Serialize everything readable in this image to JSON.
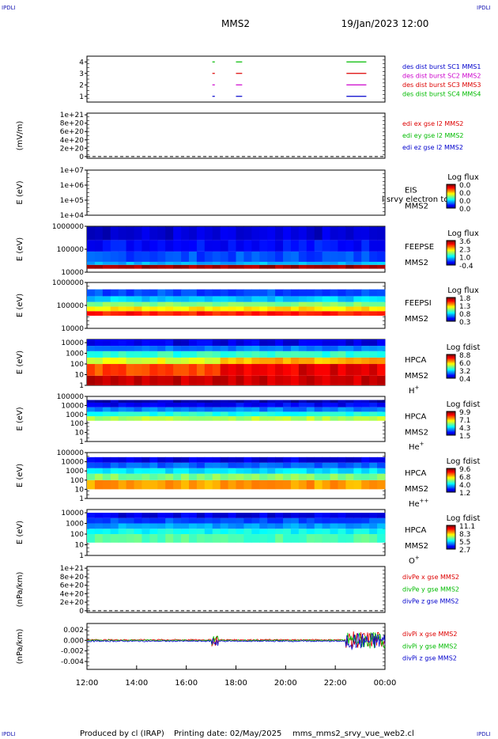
{
  "header": {
    "satellite": "MMS2",
    "datetime": "19/Jan/2023 12:00",
    "corner_label": "IPDLI"
  },
  "footer": {
    "produced_by": "Produced by cl (IRAP)",
    "printing_date": "Printing date: 02/May/2025",
    "script": "mms_mms2_srvy_vue_web2.cl"
  },
  "chart_data": [
    {
      "type": "line",
      "panel": "burst-availability",
      "ylabel": "",
      "y_ticks": [
        "1",
        "2",
        "3",
        "4"
      ],
      "ylim": [
        0.5,
        4.5
      ],
      "series": [
        {
          "name": "des dist burst SC1 MMS1",
          "color": "#0000cc",
          "level": 1,
          "intervals": [
            [
              17.05,
              17.15
            ],
            [
              18.0,
              18.25
            ],
            [
              22.45,
              23.25
            ]
          ]
        },
        {
          "name": "des dist burst SC2 MMS2",
          "color": "#cc00cc",
          "level": 2,
          "intervals": [
            [
              17.05,
              17.15
            ],
            [
              18.0,
              18.25
            ],
            [
              22.45,
              23.25
            ]
          ]
        },
        {
          "name": "des dist burst SC3 MMS3",
          "color": "#dd0000",
          "level": 3,
          "intervals": [
            [
              17.05,
              17.15
            ],
            [
              18.0,
              18.25
            ],
            [
              22.45,
              23.25
            ]
          ]
        },
        {
          "name": "des dist burst SC4 MMS4",
          "color": "#00bb00",
          "level": 4,
          "intervals": [
            [
              17.05,
              17.15
            ],
            [
              18.0,
              18.25
            ],
            [
              22.45,
              23.25
            ]
          ]
        }
      ]
    },
    {
      "type": "line",
      "panel": "edi-electric-field",
      "ylabel": "(mV/m)",
      "y_ticks": [
        "0",
        "2e+20",
        "4e+20",
        "6e+20",
        "8e+20",
        "1e+21"
      ],
      "y_tick_values": [
        0,
        2e+20,
        4e+20,
        6e+20,
        8e+20,
        1e+21
      ],
      "ylim": [
        -4e+19,
        1.04e+21
      ],
      "zero_line": true,
      "series": [
        {
          "name": "edi ex gse l2 MMS2",
          "color": "#dd0000"
        },
        {
          "name": "edi ey gse l2 MMS2",
          "color": "#00bb00"
        },
        {
          "name": "edi ez gse l2 MMS2",
          "color": "#0000cc"
        }
      ]
    },
    {
      "type": "heatmap",
      "panel": "eis",
      "ylabel": "E (eV)",
      "y_ticks": [
        "1e+04",
        "1e+05",
        "1e+06",
        "1e+07"
      ],
      "ylog": [
        4,
        7
      ],
      "labels": [
        "EIS",
        "MMS2"
      ],
      "overlay_text": "l srvy electron to",
      "colorbar": {
        "title": "Log flux",
        "ticks": [
          "0.0",
          "0.0",
          "0.0",
          "0.0"
        ]
      },
      "bands": []
    },
    {
      "type": "heatmap",
      "panel": "feeps-electrons",
      "ylabel": "E (eV)",
      "y_ticks": [
        "10000",
        "100000",
        "1000000"
      ],
      "ylog": [
        4,
        6
      ],
      "labels": [
        "FEEPSE",
        "MMS2"
      ],
      "colorbar": {
        "title": "Log flux",
        "ticks": [
          "3.6",
          "2.3",
          "1.0",
          "-0.4"
        ]
      },
      "bands": [
        {
          "lo": 4.15,
          "hi": 4.32,
          "v": 0.97
        },
        {
          "lo": 4.32,
          "hi": 4.45,
          "v": 0.3
        },
        {
          "lo": 4.45,
          "hi": 4.9,
          "v": 0.2
        },
        {
          "lo": 4.9,
          "hi": 5.4,
          "v": 0.14
        },
        {
          "lo": 5.4,
          "hi": 5.98,
          "v": 0.08
        }
      ]
    },
    {
      "type": "heatmap",
      "panel": "feeps-ions",
      "ylabel": "E (eV)",
      "y_ticks": [
        "10000",
        "100000",
        "1000000"
      ],
      "ylog": [
        4,
        6
      ],
      "labels": [
        "FEEPSI",
        "MMS2"
      ],
      "colorbar": {
        "title": "Log flux",
        "ticks": [
          "1.8",
          "1.3",
          "0.8",
          "0.3"
        ]
      },
      "bands": [
        {
          "lo": 4.55,
          "hi": 4.75,
          "v": 0.85
        },
        {
          "lo": 4.75,
          "hi": 4.95,
          "v": 0.65
        },
        {
          "lo": 4.95,
          "hi": 5.15,
          "v": 0.5
        },
        {
          "lo": 5.15,
          "hi": 5.4,
          "v": 0.33
        },
        {
          "lo": 5.4,
          "hi": 5.7,
          "v": 0.2
        }
      ]
    },
    {
      "type": "heatmap",
      "panel": "hpca-h-plus",
      "ylabel": "E (eV)",
      "y_ticks": [
        "1",
        "10",
        "100",
        "1000",
        "10000"
      ],
      "ylog": [
        0,
        4.3
      ],
      "labels": [
        "HPCA",
        "MMS2",
        "H+"
      ],
      "colorbar": {
        "title": "Log fdist",
        "ticks": [
          "8.8",
          "6.0",
          "3.2",
          "0.4"
        ]
      },
      "bands": [
        {
          "lo": 0.0,
          "hi": 0.9,
          "v": 0.93
        },
        {
          "lo": 0.9,
          "hi": 2.0,
          "v": 0.8
        },
        {
          "lo": 2.0,
          "hi": 2.6,
          "v": 0.6
        },
        {
          "lo": 2.6,
          "hi": 3.2,
          "v": 0.42
        },
        {
          "lo": 3.2,
          "hi": 3.7,
          "v": 0.25
        },
        {
          "lo": 3.7,
          "hi": 4.3,
          "v": 0.1
        }
      ]
    },
    {
      "type": "heatmap",
      "panel": "hpca-he-plus",
      "ylabel": "E (eV)",
      "y_ticks": [
        "1",
        "10",
        "100",
        "1000",
        "10000",
        "100000"
      ],
      "ylog": [
        0,
        5
      ],
      "labels": [
        "HPCA",
        "MMS2",
        "He+"
      ],
      "colorbar": {
        "title": "Log fdist",
        "ticks": [
          "9.9",
          "7.1",
          "4.3",
          "1.5"
        ]
      },
      "bands": [
        {
          "lo": 2.3,
          "hi": 2.8,
          "v": 0.55
        },
        {
          "lo": 2.8,
          "hi": 3.3,
          "v": 0.4
        },
        {
          "lo": 3.3,
          "hi": 3.8,
          "v": 0.25
        },
        {
          "lo": 3.8,
          "hi": 4.3,
          "v": 0.12
        },
        {
          "lo": 4.3,
          "hi": 4.6,
          "v": 0.05
        }
      ]
    },
    {
      "type": "heatmap",
      "panel": "hpca-he-plus-plus",
      "ylabel": "E (eV)",
      "y_ticks": [
        "1",
        "10",
        "100",
        "1000",
        "10000",
        "100000"
      ],
      "ylog": [
        0,
        5
      ],
      "labels": [
        "HPCA",
        "MMS2",
        "He++"
      ],
      "colorbar": {
        "title": "Log fdist",
        "ticks": [
          "9.6",
          "6.8",
          "4.0",
          "1.2"
        ]
      },
      "bands": [
        {
          "lo": 1.0,
          "hi": 2.0,
          "v": 0.72
        },
        {
          "lo": 2.0,
          "hi": 2.7,
          "v": 0.5
        },
        {
          "lo": 2.7,
          "hi": 3.3,
          "v": 0.35
        },
        {
          "lo": 3.3,
          "hi": 3.9,
          "v": 0.22
        },
        {
          "lo": 3.9,
          "hi": 4.5,
          "v": 0.1
        }
      ]
    },
    {
      "type": "heatmap",
      "panel": "hpca-o-plus",
      "ylabel": "E (eV)",
      "y_ticks": [
        "1",
        "10",
        "100",
        "1000",
        "10000"
      ],
      "ylog": [
        0,
        4.3
      ],
      "labels": [
        "HPCA",
        "MMS2",
        "O+"
      ],
      "colorbar": {
        "title": "Log fdist",
        "ticks": [
          "11.1",
          "8.3",
          "5.5",
          "2.7"
        ]
      },
      "bands": [
        {
          "lo": 1.2,
          "hi": 2.0,
          "v": 0.45
        },
        {
          "lo": 2.0,
          "hi": 2.5,
          "v": 0.38
        },
        {
          "lo": 2.5,
          "hi": 3.0,
          "v": 0.28
        },
        {
          "lo": 3.0,
          "hi": 3.5,
          "v": 0.2
        },
        {
          "lo": 3.5,
          "hi": 4.0,
          "v": 0.1
        }
      ]
    },
    {
      "type": "line",
      "panel": "div-pe",
      "ylabel": "(nPa/km)",
      "y_ticks": [
        "0",
        "2e+20",
        "4e+20",
        "6e+20",
        "8e+20",
        "1e+21"
      ],
      "y_tick_values": [
        0,
        2e+20,
        4e+20,
        6e+20,
        8e+20,
        1e+21
      ],
      "ylim": [
        -4e+19,
        1.04e+21
      ],
      "zero_line": true,
      "series": [
        {
          "name": "divPe x gse MMS2",
          "color": "#dd0000"
        },
        {
          "name": "divPe y gse MMS2",
          "color": "#00bb00"
        },
        {
          "name": "divPe z gse MMS2",
          "color": "#0000cc"
        }
      ]
    },
    {
      "type": "line",
      "panel": "div-pi",
      "ylabel": "(nPa/km)",
      "y_ticks": [
        "-0.004",
        "-0.002",
        "0.000",
        "0.002"
      ],
      "y_tick_values": [
        -0.004,
        -0.002,
        0.0,
        0.002
      ],
      "ylim": [
        -0.0055,
        0.0032
      ],
      "series": [
        {
          "name": "divPi x gse MMS2",
          "color": "#dd0000"
        },
        {
          "name": "divPi y gse MMS2",
          "color": "#00bb00"
        },
        {
          "name": "divPi z gse MMS2",
          "color": "#0000cc"
        }
      ]
    }
  ],
  "x_axis": {
    "xlim": [
      12,
      24
    ],
    "tick_labels": [
      "12:00",
      "14:00",
      "16:00",
      "18:00",
      "20:00",
      "22:00",
      "00:00"
    ],
    "tick_values": [
      12,
      14,
      16,
      18,
      20,
      22,
      24
    ]
  }
}
